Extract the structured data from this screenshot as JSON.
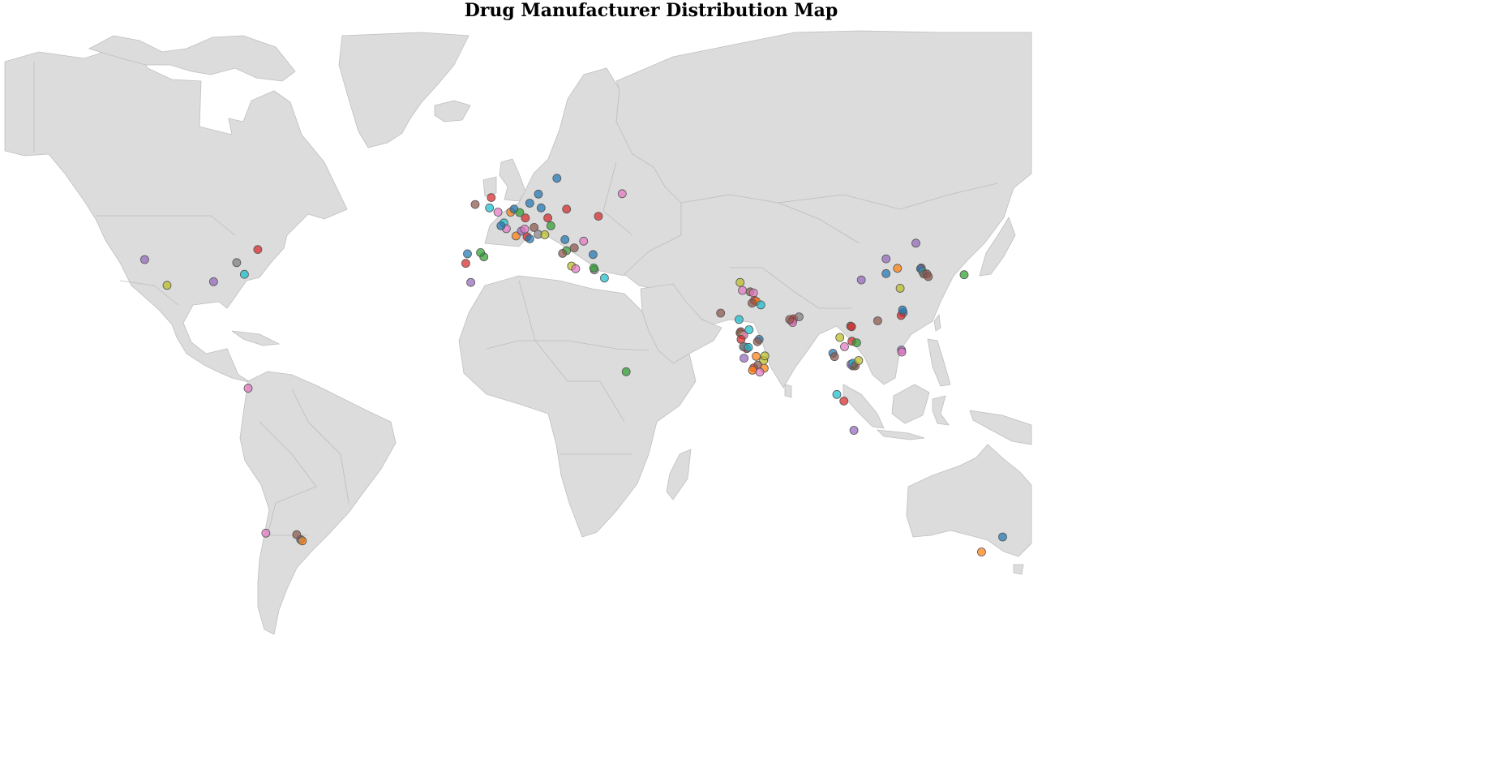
{
  "map": {
    "title": "Drug Manufacturer Distribution Map"
  },
  "chart_data": {
    "type": "scatter",
    "projection": "equirectangular world map (lon/lat)",
    "legend": "none",
    "colors": [
      "#1f77b4",
      "#ff7f0e",
      "#2ca02c",
      "#d62728",
      "#9467bd",
      "#8c564b",
      "#e377c2",
      "#7f7f7f",
      "#bcbd22",
      "#17becf"
    ],
    "points": [
      {
        "lon": -105.0,
        "lat": 39.7,
        "color": "#9467bd"
      },
      {
        "lon": -71.2,
        "lat": 42.3,
        "color": "#d62728"
      },
      {
        "lon": -77.5,
        "lat": 38.9,
        "color": "#7f7f7f"
      },
      {
        "lon": -75.2,
        "lat": 35.8,
        "color": "#17becf"
      },
      {
        "lon": -98.3,
        "lat": 32.8,
        "color": "#bcbd22"
      },
      {
        "lon": -84.4,
        "lat": 33.8,
        "color": "#9467bd"
      },
      {
        "lon": -74.1,
        "lat": 4.7,
        "color": "#e377c2"
      },
      {
        "lon": -58.4,
        "lat": -34.6,
        "color": "#1f77b4"
      },
      {
        "lon": -57.9,
        "lat": -34.9,
        "color": "#ff7f0e"
      },
      {
        "lon": -59.6,
        "lat": -33.3,
        "color": "#8c564b"
      },
      {
        "lon": -68.8,
        "lat": -32.9,
        "color": "#e377c2"
      },
      {
        "lon": -6.3,
        "lat": 53.3,
        "color": "#8c564b"
      },
      {
        "lon": -1.5,
        "lat": 54.9,
        "color": "#d62728"
      },
      {
        "lon": -2.0,
        "lat": 52.5,
        "color": "#17becf"
      },
      {
        "lon": 0.5,
        "lat": 51.5,
        "color": "#e377c2"
      },
      {
        "lon": 4.3,
        "lat": 51.5,
        "color": "#ff7f0e"
      },
      {
        "lon": 5.3,
        "lat": 52.2,
        "color": "#1f77b4"
      },
      {
        "lon": 7.0,
        "lat": 51.4,
        "color": "#2ca02c"
      },
      {
        "lon": 8.7,
        "lat": 50.1,
        "color": "#d62728"
      },
      {
        "lon": 2.3,
        "lat": 48.9,
        "color": "#17becf"
      },
      {
        "lon": 3.0,
        "lat": 47.5,
        "color": "#e377c2"
      },
      {
        "lon": 1.4,
        "lat": 48.2,
        "color": "#1f77b4"
      },
      {
        "lon": 5.9,
        "lat": 45.7,
        "color": "#ff7f0e"
      },
      {
        "lon": 7.5,
        "lat": 46.9,
        "color": "#9467bd"
      },
      {
        "lon": 8.5,
        "lat": 47.4,
        "color": "#e377c2"
      },
      {
        "lon": 9.2,
        "lat": 45.5,
        "color": "#d62728"
      },
      {
        "lon": 10.0,
        "lat": 45.0,
        "color": "#1f77b4"
      },
      {
        "lon": 11.3,
        "lat": 47.8,
        "color": "#8c564b"
      },
      {
        "lon": 12.5,
        "lat": 46.1,
        "color": "#7f7f7f"
      },
      {
        "lon": 14.5,
        "lat": 46.0,
        "color": "#bcbd22"
      },
      {
        "lon": 13.4,
        "lat": 52.5,
        "color": "#1f77b4"
      },
      {
        "lon": 15.4,
        "lat": 50.1,
        "color": "#d62728"
      },
      {
        "lon": 16.3,
        "lat": 48.2,
        "color": "#2ca02c"
      },
      {
        "lon": 10.0,
        "lat": 53.6,
        "color": "#1f77b4"
      },
      {
        "lon": 12.6,
        "lat": 55.7,
        "color": "#1f77b4"
      },
      {
        "lon": 18.1,
        "lat": 59.3,
        "color": "#1f77b4"
      },
      {
        "lon": 21.0,
        "lat": 52.2,
        "color": "#d62728"
      },
      {
        "lon": 26.1,
        "lat": 44.4,
        "color": "#e377c2"
      },
      {
        "lon": 37.6,
        "lat": 55.8,
        "color": "#e377c2"
      },
      {
        "lon": 30.5,
        "lat": 50.5,
        "color": "#d62728"
      },
      {
        "lon": 20.5,
        "lat": 44.8,
        "color": "#1f77b4"
      },
      {
        "lon": 21.0,
        "lat": 42.0,
        "color": "#2ca02c"
      },
      {
        "lon": 23.3,
        "lat": 42.7,
        "color": "#8c564b"
      },
      {
        "lon": 19.8,
        "lat": 41.3,
        "color": "#8c564b"
      },
      {
        "lon": 22.5,
        "lat": 38.0,
        "color": "#bcbd22"
      },
      {
        "lon": 23.7,
        "lat": 37.3,
        "color": "#e377c2"
      },
      {
        "lon": 28.9,
        "lat": 41.0,
        "color": "#1f77b4"
      },
      {
        "lon": 29.3,
        "lat": 37.0,
        "color": "#7f7f7f"
      },
      {
        "lon": 29.1,
        "lat": 37.5,
        "color": "#2ca02c"
      },
      {
        "lon": 32.3,
        "lat": 34.8,
        "color": "#17becf"
      },
      {
        "lon": -8.6,
        "lat": 41.2,
        "color": "#1f77b4"
      },
      {
        "lon": -9.1,
        "lat": 38.7,
        "color": "#d62728"
      },
      {
        "lon": -3.7,
        "lat": 40.4,
        "color": "#2ca02c"
      },
      {
        "lon": -4.7,
        "lat": 41.5,
        "color": "#2ca02c"
      },
      {
        "lon": -7.6,
        "lat": 33.6,
        "color": "#9467bd"
      },
      {
        "lon": 38.8,
        "lat": 9.0,
        "color": "#2ca02c"
      },
      {
        "lon": 72.8,
        "lat": 33.6,
        "color": "#bcbd22"
      },
      {
        "lon": 73.5,
        "lat": 31.4,
        "color": "#e377c2"
      },
      {
        "lon": 75.8,
        "lat": 31.0,
        "color": "#8c564b"
      },
      {
        "lon": 76.8,
        "lat": 30.7,
        "color": "#e377c2"
      },
      {
        "lon": 77.1,
        "lat": 28.6,
        "color": "#d62728"
      },
      {
        "lon": 77.6,
        "lat": 28.3,
        "color": "#ff7f0e"
      },
      {
        "lon": 76.4,
        "lat": 27.8,
        "color": "#8c564b"
      },
      {
        "lon": 79.0,
        "lat": 27.3,
        "color": "#17becf"
      },
      {
        "lon": 72.5,
        "lat": 23.0,
        "color": "#17becf"
      },
      {
        "lon": 67.0,
        "lat": 24.9,
        "color": "#8c564b"
      },
      {
        "lon": 72.8,
        "lat": 19.1,
        "color": "#d62728"
      },
      {
        "lon": 73.0,
        "lat": 19.4,
        "color": "#8c564b"
      },
      {
        "lon": 73.4,
        "lat": 18.6,
        "color": "#bcbd22"
      },
      {
        "lon": 73.9,
        "lat": 18.5,
        "color": "#e377c2"
      },
      {
        "lon": 75.5,
        "lat": 19.9,
        "color": "#17becf"
      },
      {
        "lon": 78.5,
        "lat": 17.4,
        "color": "#1f77b4"
      },
      {
        "lon": 78.0,
        "lat": 16.8,
        "color": "#8c564b"
      },
      {
        "lon": 73.1,
        "lat": 17.4,
        "color": "#d62728"
      },
      {
        "lon": 74.2,
        "lat": 15.4,
        "color": "#1f77b4"
      },
      {
        "lon": 74.8,
        "lat": 15.0,
        "color": "#d62728"
      },
      {
        "lon": 73.8,
        "lat": 15.5,
        "color": "#7f7f7f"
      },
      {
        "lon": 75.3,
        "lat": 15.3,
        "color": "#17becf"
      },
      {
        "lon": 77.6,
        "lat": 13.0,
        "color": "#ff7f0e"
      },
      {
        "lon": 79.8,
        "lat": 11.9,
        "color": "#bcbd22"
      },
      {
        "lon": 74.0,
        "lat": 12.5,
        "color": "#9467bd"
      },
      {
        "lon": 76.9,
        "lat": 10.0,
        "color": "#d62728"
      },
      {
        "lon": 78.1,
        "lat": 10.7,
        "color": "#8c564b"
      },
      {
        "lon": 80.2,
        "lat": 13.1,
        "color": "#bcbd22"
      },
      {
        "lon": 80.0,
        "lat": 9.9,
        "color": "#ff7f0e"
      },
      {
        "lon": 78.7,
        "lat": 8.9,
        "color": "#e377c2"
      },
      {
        "lon": 76.5,
        "lat": 9.4,
        "color": "#ff7f0e"
      },
      {
        "lon": 88.3,
        "lat": 22.6,
        "color": "#d62728"
      },
      {
        "lon": 88.8,
        "lat": 23.2,
        "color": "#d62728"
      },
      {
        "lon": 88.5,
        "lat": 22.1,
        "color": "#e377c2"
      },
      {
        "lon": 87.6,
        "lat": 23.0,
        "color": "#8c564b"
      },
      {
        "lon": 90.4,
        "lat": 23.8,
        "color": "#7f7f7f"
      },
      {
        "lon": 100.5,
        "lat": 13.8,
        "color": "#1f77b4"
      },
      {
        "lon": 101.0,
        "lat": 12.9,
        "color": "#8c564b"
      },
      {
        "lon": 102.6,
        "lat": 17.9,
        "color": "#bcbd22"
      },
      {
        "lon": 104.0,
        "lat": 15.5,
        "color": "#e377c2"
      },
      {
        "lon": 105.8,
        "lat": 21.0,
        "color": "#8c564b"
      },
      {
        "lon": 106.1,
        "lat": 20.8,
        "color": "#d62728"
      },
      {
        "lon": 106.2,
        "lat": 16.9,
        "color": "#d62728"
      },
      {
        "lon": 107.6,
        "lat": 16.5,
        "color": "#2ca02c"
      },
      {
        "lon": 106.7,
        "lat": 10.8,
        "color": "#1f77b4"
      },
      {
        "lon": 106.4,
        "lat": 10.5,
        "color": "#2ca02c"
      },
      {
        "lon": 105.9,
        "lat": 10.9,
        "color": "#9467bd"
      },
      {
        "lon": 106.5,
        "lat": 11.2,
        "color": "#17becf"
      },
      {
        "lon": 107.2,
        "lat": 10.5,
        "color": "#8c564b"
      },
      {
        "lon": 108.2,
        "lat": 11.9,
        "color": "#bcbd22"
      },
      {
        "lon": 101.7,
        "lat": 3.1,
        "color": "#17becf"
      },
      {
        "lon": 103.8,
        "lat": 1.4,
        "color": "#d62728"
      },
      {
        "lon": 106.8,
        "lat": -6.2,
        "color": "#9467bd"
      },
      {
        "lon": 121.0,
        "lat": 14.6,
        "color": "#9467bd"
      },
      {
        "lon": 121.1,
        "lat": 14.1,
        "color": "#e377c2"
      },
      {
        "lon": 113.9,
        "lat": 22.6,
        "color": "#8c564b"
      },
      {
        "lon": 121.5,
        "lat": 25.0,
        "color": "#1f77b4"
      },
      {
        "lon": 120.9,
        "lat": 24.2,
        "color": "#d62728"
      },
      {
        "lon": 121.3,
        "lat": 25.8,
        "color": "#1f77b4"
      },
      {
        "lon": 109.0,
        "lat": 34.3,
        "color": "#9467bd"
      },
      {
        "lon": 116.4,
        "lat": 36.0,
        "color": "#1f77b4"
      },
      {
        "lon": 116.4,
        "lat": 39.9,
        "color": "#9467bd"
      },
      {
        "lon": 119.8,
        "lat": 37.4,
        "color": "#ff7f0e"
      },
      {
        "lon": 120.6,
        "lat": 32.0,
        "color": "#bcbd22"
      },
      {
        "lon": 125.3,
        "lat": 43.9,
        "color": "#9467bd"
      },
      {
        "lon": 126.9,
        "lat": 37.5,
        "color": "#d62728"
      },
      {
        "lon": 126.7,
        "lat": 37.3,
        "color": "#1f77b4"
      },
      {
        "lon": 127.4,
        "lat": 36.4,
        "color": "#17becf"
      },
      {
        "lon": 127.7,
        "lat": 35.9,
        "color": "#8c564b"
      },
      {
        "lon": 128.6,
        "lat": 35.9,
        "color": "#8c564b"
      },
      {
        "lon": 129.0,
        "lat": 35.2,
        "color": "#8c564b"
      },
      {
        "lon": 139.7,
        "lat": 35.7,
        "color": "#2ca02c"
      },
      {
        "lon": 144.9,
        "lat": -37.8,
        "color": "#ff7f0e"
      },
      {
        "lon": 151.2,
        "lat": -33.9,
        "color": "#1f77b4"
      }
    ]
  }
}
